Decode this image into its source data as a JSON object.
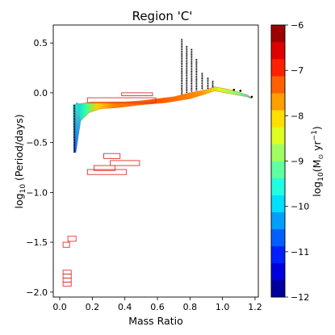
{
  "chart_data": {
    "type": "scatter",
    "title": "Region 'C'",
    "xlabel": "Mass Ratio",
    "ylabel_prefix": "log",
    "ylabel_sub": "10",
    "ylabel_suffix": " (Period/days)",
    "xlim": [
      -0.04,
      1.22
    ],
    "ylim": [
      -2.05,
      0.68
    ],
    "xticks": [
      0.0,
      0.2,
      0.4,
      0.6,
      0.8,
      1.0,
      1.2
    ],
    "xtick_labels": [
      "0.0",
      "0.2",
      "0.4",
      "0.6",
      "0.8",
      "1.0",
      "1.2"
    ],
    "yticks": [
      0.5,
      0.0,
      -0.5,
      -1.0,
      -1.5,
      -2.0
    ],
    "ytick_labels": [
      "0.5",
      "0.0",
      "−0.5",
      "−1.0",
      "−1.5",
      "−2.0"
    ],
    "colorbar": {
      "label_prefix": "log",
      "label_sub": "10",
      "label_suffix": "(M",
      "label_end": " yr",
      "label_exp": "−1",
      "label_close": ")",
      "range": [
        -12,
        -6
      ],
      "ticks": [
        -6,
        -7,
        -8,
        -9,
        -10,
        -11,
        -12
      ],
      "tick_labels": [
        "−6",
        "−7",
        "−8",
        "−9",
        "−10",
        "−11",
        "−12"
      ],
      "colormap": "jet"
    },
    "colored_band": {
      "description_free": true,
      "upper_edge": [
        [
          0.1,
          -0.1
        ],
        [
          0.12,
          -0.11
        ],
        [
          0.2,
          -0.09
        ],
        [
          0.3,
          -0.09
        ],
        [
          0.4,
          -0.09
        ],
        [
          0.5,
          -0.08
        ],
        [
          0.6,
          -0.06
        ],
        [
          0.7,
          -0.04
        ],
        [
          0.8,
          0.0
        ],
        [
          0.9,
          0.03
        ],
        [
          0.95,
          0.06
        ],
        [
          1.05,
          0.03
        ],
        [
          1.15,
          -0.02
        ],
        [
          1.18,
          -0.05
        ]
      ],
      "lower_edge": [
        [
          0.1,
          -0.35
        ],
        [
          0.13,
          -0.28
        ],
        [
          0.18,
          -0.2
        ],
        [
          0.25,
          -0.16
        ],
        [
          0.35,
          -0.15
        ],
        [
          0.5,
          -0.12
        ],
        [
          0.65,
          -0.1
        ],
        [
          0.8,
          -0.06
        ],
        [
          0.9,
          -0.01
        ],
        [
          0.95,
          0.02
        ],
        [
          1.05,
          -0.01
        ],
        [
          1.15,
          -0.04
        ],
        [
          1.18,
          -0.06
        ]
      ]
    },
    "tail": {
      "x": 0.095,
      "y_top": -0.12,
      "y_bottom": -0.6
    },
    "vertical_tracks": [
      {
        "x": 0.75,
        "y_top": 0.54,
        "y_bottom": -0.02
      },
      {
        "x": 0.78,
        "y_top": 0.47,
        "y_bottom": 0.0
      },
      {
        "x": 0.81,
        "y_top": 0.44,
        "y_bottom": 0.01
      },
      {
        "x": 0.84,
        "y_top": 0.34,
        "y_bottom": 0.02
      },
      {
        "x": 0.875,
        "y_top": 0.2,
        "y_bottom": 0.03
      },
      {
        "x": 0.91,
        "y_top": 0.15,
        "y_bottom": 0.04
      },
      {
        "x": 0.94,
        "y_top": 0.12,
        "y_bottom": 0.05
      }
    ],
    "dots": [
      [
        1.07,
        0.03
      ],
      [
        1.11,
        0.02
      ],
      [
        1.18,
        -0.04
      ]
    ],
    "boxes": [
      {
        "x0": 0.38,
        "x1": 0.57,
        "y0": -0.03,
        "y1": 0.0
      },
      {
        "x0": 0.17,
        "x1": 0.59,
        "y0": -0.1,
        "y1": -0.05
      },
      {
        "x0": 0.27,
        "x1": 0.37,
        "y0": -0.66,
        "y1": -0.61
      },
      {
        "x0": 0.31,
        "x1": 0.49,
        "y0": -0.73,
        "y1": -0.68
      },
      {
        "x0": 0.21,
        "x1": 0.34,
        "y0": -0.78,
        "y1": -0.73
      },
      {
        "x0": 0.17,
        "x1": 0.41,
        "y0": -0.82,
        "y1": -0.77
      },
      {
        "x0": 0.05,
        "x1": 0.1,
        "y0": -1.49,
        "y1": -1.44
      },
      {
        "x0": 0.02,
        "x1": 0.06,
        "y0": -1.55,
        "y1": -1.5
      },
      {
        "x0": 0.02,
        "x1": 0.07,
        "y0": -1.82,
        "y1": -1.78
      },
      {
        "x0": 0.02,
        "x1": 0.07,
        "y0": -1.86,
        "y1": -1.82
      },
      {
        "x0": 0.02,
        "x1": 0.07,
        "y0": -1.9,
        "y1": -1.86
      },
      {
        "x0": 0.02,
        "x1": 0.07,
        "y0": -1.94,
        "y1": -1.9
      }
    ],
    "box_color": "#e03030",
    "grid": false
  }
}
